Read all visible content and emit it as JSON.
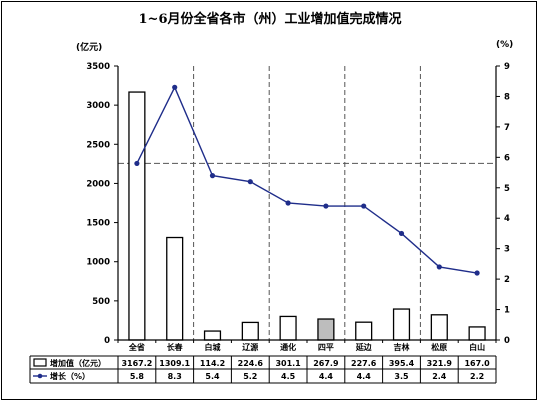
{
  "chart_data": {
    "type": "bar+line",
    "title": "1~6月份全省各市（州）工业增加值完成情况",
    "left_unit": "(亿元)",
    "right_unit": "(%)",
    "categories": [
      "全省",
      "长春",
      "白城",
      "辽源",
      "通化",
      "四平",
      "延边",
      "吉林",
      "松原",
      "白山"
    ],
    "bar_series": {
      "name": "增加值（亿元）",
      "values": [
        3167.2,
        1309.1,
        114.2,
        224.6,
        301.1,
        267.9,
        227.6,
        395.4,
        321.9,
        167.0
      ],
      "labels": [
        "3167.2",
        "1309.1",
        "114.2",
        "224.6",
        "301.1",
        "267.9",
        "227.6",
        "395.4",
        "321.9",
        "167.0"
      ],
      "highlight_index": 5,
      "highlight_color": "#bdbdbd"
    },
    "line_series": {
      "name": "增长（%）",
      "values": [
        5.8,
        8.3,
        5.4,
        5.2,
        4.5,
        4.4,
        4.4,
        3.5,
        2.4,
        2.2
      ],
      "labels": [
        "5.8",
        "8.3",
        "5.4",
        "5.2",
        "4.5",
        "4.4",
        "4.4",
        "3.5",
        "2.4",
        "2.2"
      ],
      "color": "#1f2d8a"
    },
    "y_left": {
      "min": 0,
      "max": 3500,
      "ticks": [
        0,
        500,
        1000,
        1500,
        2000,
        2500,
        3000,
        3500
      ]
    },
    "y_right": {
      "min": 0,
      "max": 9,
      "ticks": [
        0,
        1,
        2,
        3,
        4,
        5,
        6,
        7,
        8,
        9
      ]
    },
    "reference_line": 5.8
  }
}
